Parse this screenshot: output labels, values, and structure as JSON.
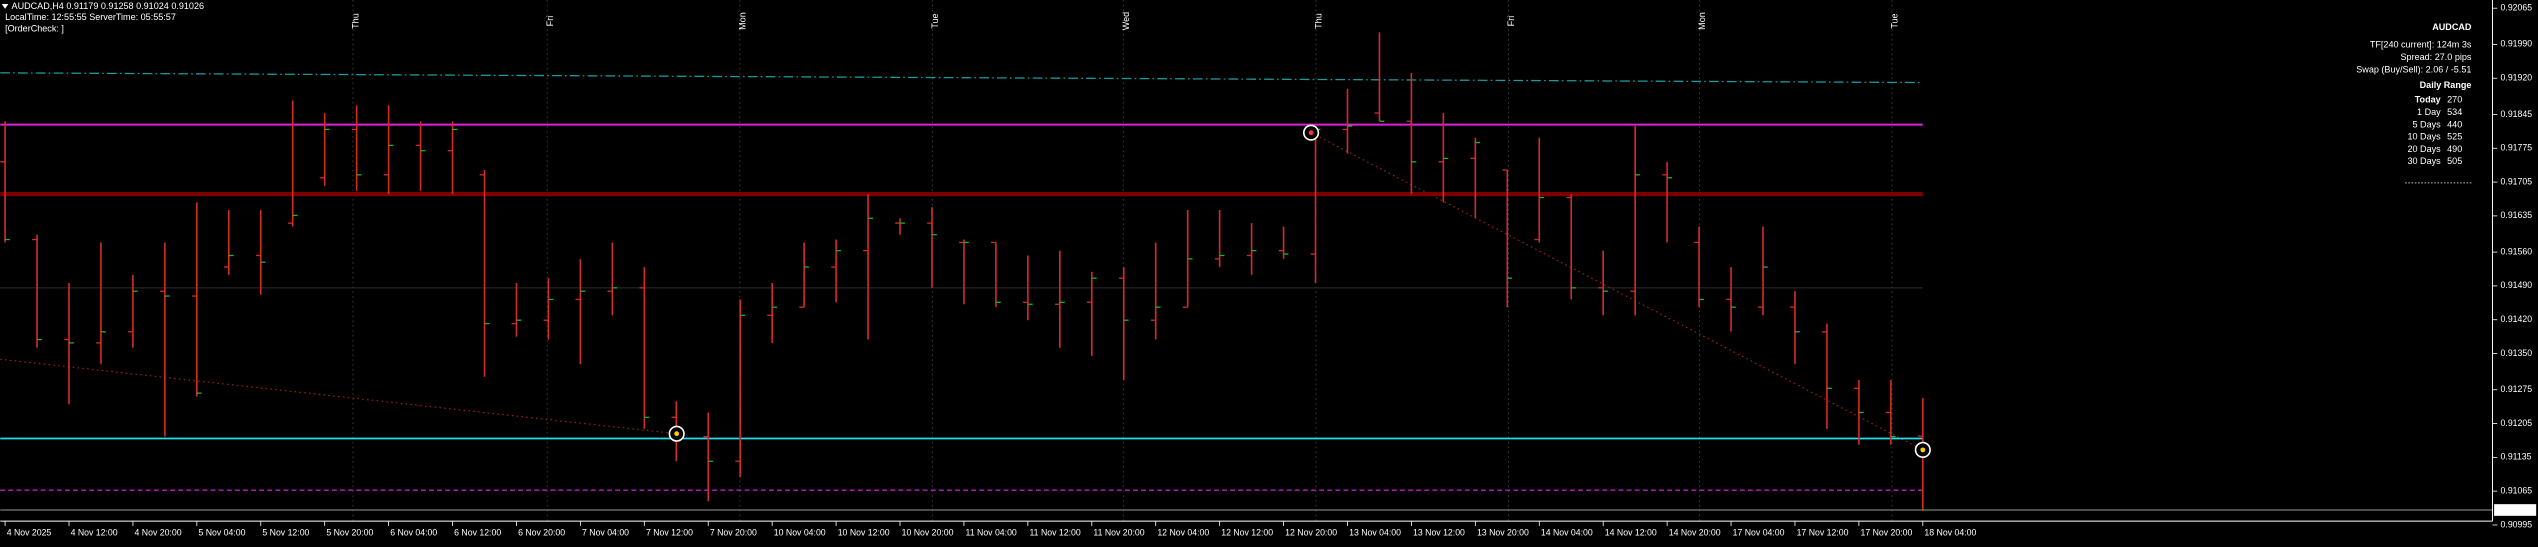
{
  "chart_data": {
    "type": "ohlc",
    "info_lines": [
      "AUDCAD,H4  0.91179 0.91258 0.91024 0.91026",
      "LocalTime: 12:55:55   ServerTime: 05:55:57",
      "[OrderCheck: ]"
    ],
    "panel": {
      "symbol": "AUDCAD",
      "lines": [
        "TF[240 current]: 124m 3s",
        "Spread: 27.0 pips",
        "Swap (Buy/Sell): 2.06 / -5.51"
      ],
      "range_title": "Daily Range",
      "ranges": [
        {
          "label": "Today",
          "value": 270
        },
        {
          "label": "1 Day",
          "value": 534
        },
        {
          "label": "5 Days",
          "value": 440
        },
        {
          "label": "10 Days",
          "value": 525
        },
        {
          "label": "20 Days",
          "value": 490
        },
        {
          "label": "30 Days",
          "value": 505
        }
      ]
    },
    "weekdays": [
      "Thu",
      "Fri",
      "Mon",
      "Tue",
      "Wed",
      "Thu",
      "Fri",
      "Mon",
      "Tue"
    ],
    "categories": [
      "4 Nov 2025",
      null,
      "4 Nov 12:00",
      null,
      "4 Nov 20:00",
      null,
      "5 Nov 04:00",
      null,
      "5 Nov 12:00",
      null,
      "5 Nov 20:00",
      null,
      "6 Nov 04:00",
      null,
      "6 Nov 12:00",
      null,
      "6 Nov 20:00",
      null,
      "7 Nov 04:00",
      null,
      "7 Nov 12:00",
      null,
      "7 Nov 20:00",
      null,
      "10 Nov 04:00",
      null,
      "10 Nov 12:00",
      null,
      "10 Nov 20:00",
      null,
      "11 Nov 04:00",
      null,
      "11 Nov 12:00",
      null,
      "11 Nov 20:00",
      null,
      "12 Nov 04:00",
      null,
      "12 Nov 12:00",
      null,
      "12 Nov 20:00",
      null,
      "13 Nov 04:00",
      null,
      "13 Nov 12:00",
      null,
      "13 Nov 20:00",
      null,
      "14 Nov 04:00",
      null,
      "14 Nov 12:00",
      null,
      "14 Nov 20:00",
      null,
      "17 Nov 04:00",
      null,
      "17 Nov 12:00",
      null,
      "17 Nov 20:00",
      null,
      "18 Nov 04:00"
    ],
    "ohlc": [
      [
        0.91747,
        0.91831,
        0.9158,
        0.91586
      ],
      [
        0.91586,
        0.91596,
        0.91362,
        0.91379
      ],
      [
        0.91379,
        0.91496,
        0.91245,
        0.91372
      ],
      [
        0.91372,
        0.9158,
        0.91328,
        0.91395
      ],
      [
        0.91395,
        0.91513,
        0.91362,
        0.91479
      ],
      [
        0.91479,
        0.9158,
        0.91178,
        0.91469
      ],
      [
        0.91469,
        0.91663,
        0.91261,
        0.91268
      ],
      [
        0.91529,
        0.91647,
        0.91513,
        0.91553
      ],
      [
        0.91553,
        0.91647,
        0.91472,
        0.91539
      ],
      [
        0.9162,
        0.91874,
        0.91613,
        0.91636
      ],
      [
        0.91714,
        0.91848,
        0.91697,
        0.91814
      ],
      [
        0.91814,
        0.91864,
        0.91687,
        0.9172
      ],
      [
        0.9172,
        0.91864,
        0.9168,
        0.91781
      ],
      [
        0.91781,
        0.91831,
        0.91687,
        0.9177
      ],
      [
        0.9177,
        0.91831,
        0.9168,
        0.91814
      ],
      [
        0.9172,
        0.9173,
        0.91302,
        0.91412
      ],
      [
        0.91412,
        0.91496,
        0.91385,
        0.91419
      ],
      [
        0.91419,
        0.91506,
        0.91379,
        0.91462
      ],
      [
        0.91462,
        0.91546,
        0.91328,
        0.91479
      ],
      [
        0.91479,
        0.9158,
        0.91429,
        0.91486
      ],
      [
        0.91486,
        0.91529,
        0.91194,
        0.91218
      ],
      [
        0.91218,
        0.91251,
        0.91127,
        0.91178
      ],
      [
        0.91178,
        0.91228,
        0.91044,
        0.91127
      ],
      [
        0.91127,
        0.91462,
        0.91094,
        0.91429
      ],
      [
        0.91429,
        0.91496,
        0.91372,
        0.91446
      ],
      [
        0.91446,
        0.9158,
        0.91446,
        0.91529
      ],
      [
        0.91529,
        0.91586,
        0.91456,
        0.91563
      ],
      [
        0.91563,
        0.9168,
        0.91379,
        0.9163
      ],
      [
        0.9162,
        0.9163,
        0.91596,
        0.9162
      ],
      [
        0.9162,
        0.91653,
        0.91486,
        0.91596
      ],
      [
        0.9158,
        0.91586,
        0.91452,
        0.9158
      ],
      [
        0.9158,
        0.9158,
        0.91446,
        0.91456
      ],
      [
        0.91456,
        0.91553,
        0.91419,
        0.91452
      ],
      [
        0.91452,
        0.91563,
        0.91362,
        0.91456
      ],
      [
        0.91456,
        0.91519,
        0.91345,
        0.91506
      ],
      [
        0.91506,
        0.91529,
        0.91295,
        0.91419
      ],
      [
        0.91419,
        0.9158,
        0.91379,
        0.91446
      ],
      [
        0.91446,
        0.91647,
        0.91446,
        0.91546
      ],
      [
        0.91546,
        0.91647,
        0.91529,
        0.91553
      ],
      [
        0.91553,
        0.9162,
        0.91513,
        0.91563
      ],
      [
        0.91563,
        0.91613,
        0.91546,
        0.91556
      ],
      [
        0.91556,
        0.91821,
        0.91496,
        0.91814
      ],
      [
        0.91814,
        0.91898,
        0.91764,
        0.91821
      ],
      [
        0.91848,
        0.92015,
        0.91831,
        0.91831
      ],
      [
        0.91831,
        0.91931,
        0.9168,
        0.91747
      ],
      [
        0.91747,
        0.91848,
        0.91663,
        0.91754
      ],
      [
        0.91754,
        0.91797,
        0.9163,
        0.91787
      ],
      [
        0.9173,
        0.9173,
        0.91446,
        0.91506
      ],
      [
        0.91586,
        0.91797,
        0.9158,
        0.91673
      ],
      [
        0.91673,
        0.9168,
        0.91462,
        0.91486
      ],
      [
        0.91486,
        0.91563,
        0.91429,
        0.91479
      ],
      [
        0.91479,
        0.91821,
        0.91429,
        0.9172
      ],
      [
        0.9172,
        0.91747,
        0.9158,
        0.91714
      ],
      [
        0.9158,
        0.91613,
        0.91446,
        0.91462
      ],
      [
        0.91462,
        0.91529,
        0.91395,
        0.91446
      ],
      [
        0.91446,
        0.91613,
        0.91429,
        0.91529
      ],
      [
        0.91446,
        0.91479,
        0.91328,
        0.91395
      ],
      [
        0.91395,
        0.91412,
        0.91194,
        0.91278
      ],
      [
        0.91278,
        0.91295,
        0.91161,
        0.91228
      ],
      [
        0.91228,
        0.91295,
        0.91161,
        0.91178
      ],
      [
        0.91179,
        0.91258,
        0.91024,
        0.91026
      ]
    ],
    "bar_color": "#d42a2a",
    "close_tick_color": "#1fb51f",
    "ylim": [
      0.91003,
      0.92082
    ],
    "yticks": [
      0.92065,
      {
        "value": 0.9199,
        "label": "0.91990"
      },
      {
        "value": 0.9192,
        "label": "0.91920"
      },
      0.91845,
      0.91775,
      0.91705,
      0.91635,
      {
        "value": 0.9156,
        "label": "0.91560"
      },
      {
        "value": 0.9149,
        "label": "0.91490"
      },
      {
        "value": 0.9142,
        "label": "0.91420"
      },
      {
        "value": 0.9135,
        "label": "0.91350"
      },
      0.91275,
      0.91205,
      0.91135,
      0.91065,
      0.90995
    ],
    "hlines": [
      {
        "value": 0.91824,
        "color": "#e020e0",
        "width": 1.2
      },
      {
        "value": 0.9168,
        "color": "#7a0000",
        "width": 2.6
      },
      {
        "value": 0.91486,
        "color": "#2e2e2e",
        "width": 0.6
      },
      {
        "value": 0.91174,
        "color": "#1ee0ee",
        "width": 1.1
      },
      {
        "value": 0.91067,
        "color": "#c020c0",
        "width": 0.9,
        "dashed": true
      }
    ],
    "price_label": {
      "value": 0.91026,
      "label": "0.91026"
    }
  }
}
